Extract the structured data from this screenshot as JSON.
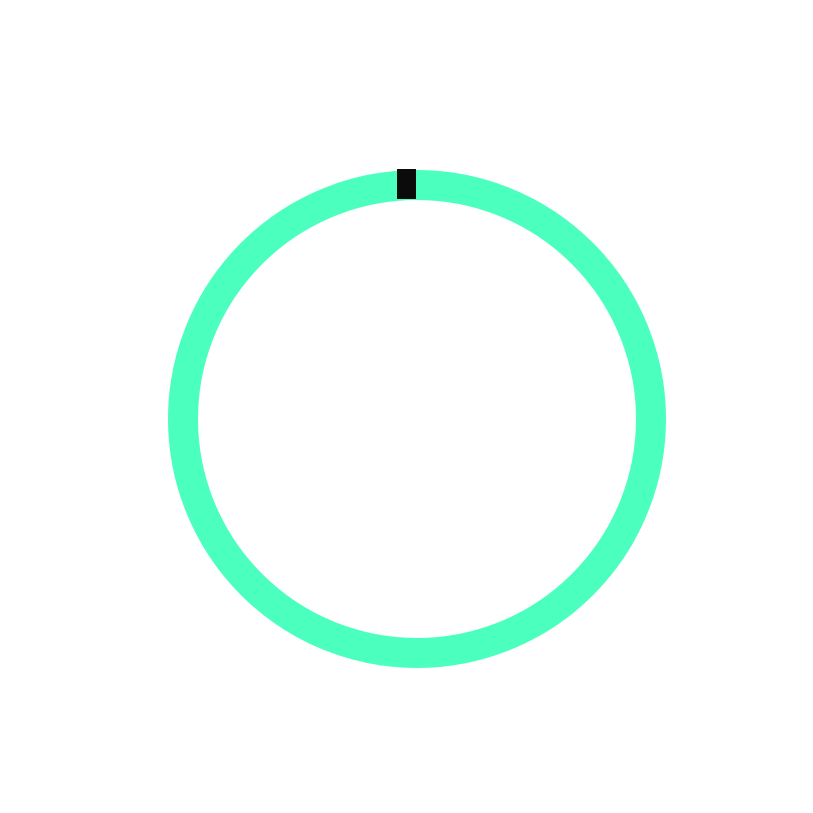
{
  "progress_ring": {
    "fraction": 0.0,
    "track_color": "#4bffbf",
    "indicator_color": "#0b0b0b",
    "indicator_position": "top"
  }
}
